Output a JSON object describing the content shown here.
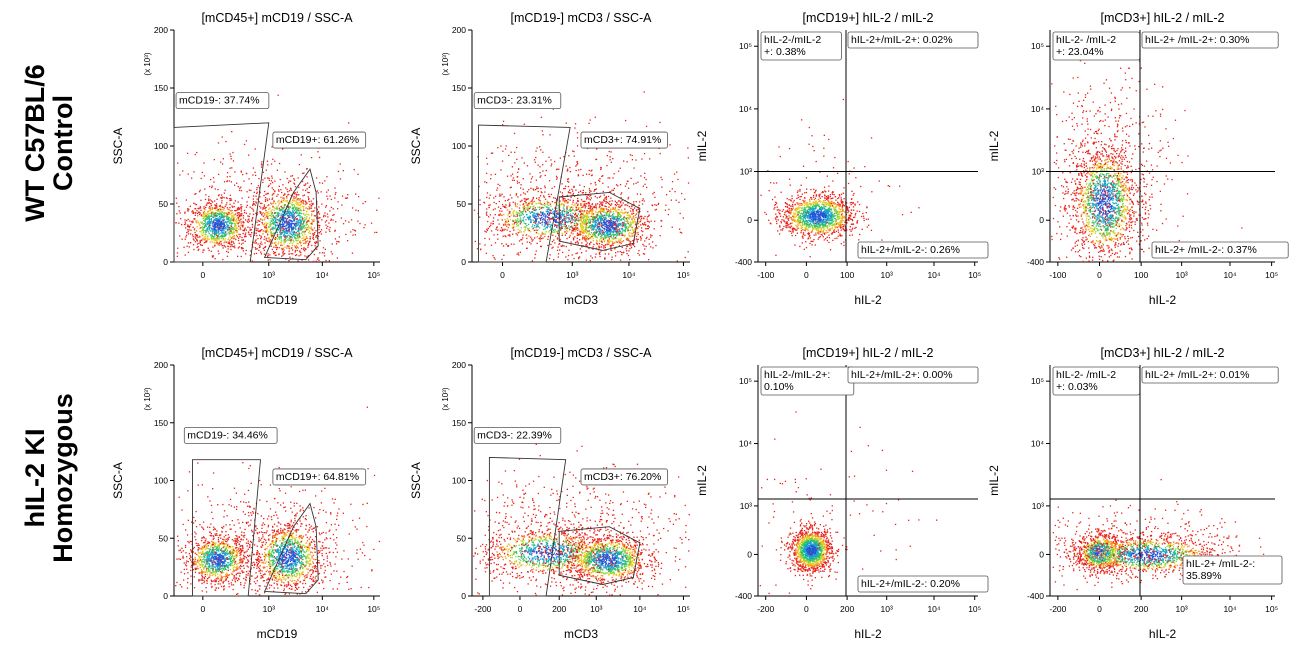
{
  "row_labels": [
    [
      "WT C57BL/6",
      "Control"
    ],
    [
      "hIL-2 KI",
      "Homozygous"
    ]
  ],
  "chart_data": [
    {
      "type": "scatter",
      "row": 0,
      "col": 0,
      "variant": "cd19",
      "title": "[mCD45+] mCD19 / SSC-A",
      "xlabel": "mCD19",
      "ylabel": "SSC-A",
      "y_multiplier": "(x 10³)",
      "xticks": [
        "0",
        "10³",
        "10⁴",
        "10⁵"
      ],
      "yticks": [
        "0",
        "50",
        "100",
        "150",
        "200"
      ],
      "ylim": [
        0,
        200
      ],
      "gates": [
        {
          "name": "mCD19-",
          "label": "mCD19-: 37.74%",
          "percent": 37.74
        },
        {
          "name": "mCD19+",
          "label": "mCD19+: 61.26%",
          "percent": 61.26
        }
      ]
    },
    {
      "type": "scatter",
      "row": 0,
      "col": 1,
      "variant": "cd3",
      "title": "[mCD19-] mCD3 / SSC-A",
      "xlabel": "mCD3",
      "ylabel": "SSC-A",
      "y_multiplier": "(x 10³)",
      "xticks": [
        "0",
        "10³",
        "10⁴",
        "10⁵"
      ],
      "yticks": [
        "0",
        "50",
        "100",
        "150",
        "200"
      ],
      "ylim": [
        0,
        200
      ],
      "gates": [
        {
          "name": "mCD3-",
          "label": "mCD3-: 23.31%",
          "percent": 23.31
        },
        {
          "name": "mCD3+",
          "label": "mCD3+: 74.91%",
          "percent": 74.91
        }
      ]
    },
    {
      "type": "scatter",
      "row": 0,
      "col": 2,
      "variant": "il2-cd19",
      "title": "[mCD19+] hIL-2 / mIL-2",
      "xlabel": "hIL-2",
      "ylabel": "mIL-2",
      "xticks": [
        "-100",
        "0",
        "100",
        "10³",
        "10⁴",
        "10⁵"
      ],
      "yticks": [
        "-400",
        "0",
        "10³",
        "10⁴",
        "10⁵"
      ],
      "quadrants": [
        {
          "name": "hIL-2-/mIL-2+",
          "label": [
            "hIL-2-/mIL-2",
            "+: 0.38%"
          ],
          "percent": 0.38
        },
        {
          "name": "hIL-2+/mIL-2+",
          "label": [
            "hIL-2+/mIL-2+: 0.02%"
          ],
          "percent": 0.02
        },
        {
          "name": "hIL-2+/mIL-2-",
          "label": [
            "hIL-2+/mIL-2-: 0.26%"
          ],
          "percent": 0.26
        }
      ]
    },
    {
      "type": "scatter",
      "row": 0,
      "col": 3,
      "variant": "il2-cd3-wt",
      "title": "[mCD3+] hIL-2 / mIL-2",
      "xlabel": "hIL-2",
      "ylabel": "mIL-2",
      "xticks": [
        "-100",
        "0",
        "100",
        "10³",
        "10⁴",
        "10⁵"
      ],
      "yticks": [
        "-400",
        "0",
        "10³",
        "10⁴",
        "10⁵"
      ],
      "quadrants": [
        {
          "name": "hIL-2-/mIL-2+",
          "label": [
            "hIL-2- /mIL-2",
            "+: 23.04%"
          ],
          "percent": 23.04
        },
        {
          "name": "hIL-2+/mIL-2+",
          "label": [
            "hIL-2+ /mIL-2+: 0.30%"
          ],
          "percent": 0.3
        },
        {
          "name": "hIL-2+/mIL-2-",
          "label": [
            "hIL-2+ /mIL-2-: 0.37%"
          ],
          "percent": 0.37
        }
      ]
    },
    {
      "type": "scatter",
      "row": 1,
      "col": 0,
      "variant": "cd19",
      "title": "[mCD45+] mCD19 / SSC-A",
      "xlabel": "mCD19",
      "ylabel": "SSC-A",
      "y_multiplier": "(x 10³)",
      "xticks": [
        "0",
        "10³",
        "10⁴",
        "10⁵"
      ],
      "yticks": [
        "0",
        "50",
        "100",
        "150",
        "200"
      ],
      "ylim": [
        0,
        200
      ],
      "gates": [
        {
          "name": "mCD19-",
          "label": "mCD19-: 34.46%",
          "percent": 34.46
        },
        {
          "name": "mCD19+",
          "label": "mCD19+: 64.81%",
          "percent": 64.81
        }
      ]
    },
    {
      "type": "scatter",
      "row": 1,
      "col": 1,
      "variant": "cd3",
      "title": "[mCD19-] mCD3 / SSC-A",
      "xlabel": "mCD3",
      "ylabel": "SSC-A",
      "y_multiplier": "(x 10³)",
      "xticks": [
        "-200",
        "0",
        "200",
        "10³",
        "10⁴",
        "10⁵"
      ],
      "yticks": [
        "0",
        "50",
        "100",
        "150",
        "200"
      ],
      "ylim": [
        0,
        200
      ],
      "gates": [
        {
          "name": "mCD3-",
          "label": "mCD3-: 22.39%",
          "percent": 22.39
        },
        {
          "name": "mCD3+",
          "label": "mCD3+: 76.20%",
          "percent": 76.2
        }
      ]
    },
    {
      "type": "scatter",
      "row": 1,
      "col": 2,
      "variant": "il2-cd19",
      "title": "[mCD19+] hIL-2 / mIL-2",
      "xlabel": "hIL-2",
      "ylabel": "mIL-2",
      "xticks": [
        "-200",
        "0",
        "200",
        "10³",
        "10⁴",
        "10⁵"
      ],
      "yticks": [
        "-400",
        "0",
        "10³",
        "10⁴",
        "10⁵"
      ],
      "quadrants": [
        {
          "name": "hIL-2-/mIL-2+",
          "label": [
            "hIL-2-/mIL-2+:",
            "0.10%"
          ],
          "percent": 0.1
        },
        {
          "name": "hIL-2+/mIL-2+",
          "label": [
            "hIL-2+/mIL-2+: 0.00%"
          ],
          "percent": 0.0
        },
        {
          "name": "hIL-2+/mIL-2-",
          "label": [
            "hIL-2+/mIL-2-: 0.20%"
          ],
          "percent": 0.2
        }
      ]
    },
    {
      "type": "scatter",
      "row": 1,
      "col": 3,
      "variant": "il2-cd3-ki",
      "title": "[mCD3+] hIL-2 / mIL-2",
      "xlabel": "hIL-2",
      "ylabel": "mIL-2",
      "xticks": [
        "-200",
        "0",
        "200",
        "10³",
        "10⁴",
        "10⁵"
      ],
      "yticks": [
        "-400",
        "0",
        "10³",
        "10⁴",
        "10⁵"
      ],
      "quadrants": [
        {
          "name": "hIL-2-/mIL-2+",
          "label": [
            "hIL-2- /mIL-2",
            "+: 0.03%"
          ],
          "percent": 0.03
        },
        {
          "name": "hIL-2+/mIL-2+",
          "label": [
            "hIL-2+ /mIL-2+: 0.01%"
          ],
          "percent": 0.01
        },
        {
          "name": "hIL-2+/mIL-2-",
          "label": [
            "hIL-2+ /mIL-2-:",
            "35.89%"
          ],
          "percent": 35.89
        }
      ]
    }
  ]
}
